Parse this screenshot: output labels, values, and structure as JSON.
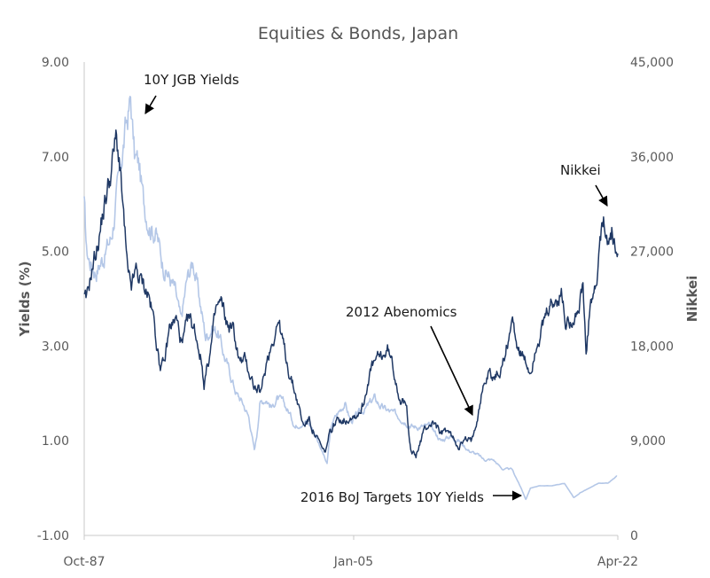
{
  "chart_data": {
    "type": "line",
    "title": "Equities & Bonds, Japan",
    "x_tick_labels": [
      "Oct-87",
      "Jan-05",
      "Apr-22"
    ],
    "x_range": [
      1987.75,
      2022.25
    ],
    "y_left": {
      "label": "Yields (%)",
      "range": [
        -1,
        9
      ],
      "tick_values": [
        -1,
        1,
        3,
        5,
        7,
        9
      ],
      "tick_labels": [
        "-1.00",
        "1.00",
        "3.00",
        "5.00",
        "7.00",
        "9.00"
      ]
    },
    "y_right": {
      "label": "Nikkei",
      "range": [
        0,
        45000
      ],
      "tick_values": [
        0,
        9000,
        18000,
        27000,
        36000,
        45000
      ],
      "tick_labels": [
        "0",
        "9,000",
        "18,000",
        "27,000",
        "36,000",
        "45,000"
      ]
    },
    "grid": false,
    "series": [
      {
        "name": "10Y JGB Yields",
        "axis": "left",
        "color": "#b4c7e7",
        "x": [
          1987.75,
          1987.9,
          1988.1,
          1988.5,
          1989.0,
          1989.5,
          1990.0,
          1990.4,
          1990.75,
          1991.0,
          1991.3,
          1991.6,
          1992.0,
          1992.4,
          1992.8,
          1993.2,
          1993.6,
          1994.0,
          1994.4,
          1994.8,
          1995.2,
          1995.6,
          1996.0,
          1996.4,
          1996.8,
          1997.2,
          1997.6,
          1998.0,
          1998.4,
          1998.75,
          1998.9,
          1999.1,
          1999.5,
          1999.9,
          2000.2,
          2000.6,
          2001.0,
          2001.4,
          2001.8,
          2002.2,
          2002.6,
          2003.0,
          2003.45,
          2003.6,
          2003.8,
          2004.2,
          2004.6,
          2005.0,
          2005.6,
          2006.0,
          2006.5,
          2007.0,
          2007.6,
          2008.2,
          2008.6,
          2009.0,
          2009.6,
          2010.2,
          2010.8,
          2011.4,
          2012.0,
          2012.6,
          2013.2,
          2013.6,
          2014.2,
          2014.8,
          2015.4,
          2016.0,
          2016.3,
          2016.6,
          2017.2,
          2018.0,
          2018.8,
          2019.4,
          2019.8,
          2020.4,
          2021.0,
          2021.6,
          2022.2
        ],
        "values": [
          6.0,
          5.0,
          4.8,
          4.6,
          4.9,
          5.3,
          6.5,
          7.5,
          8.2,
          7.0,
          6.8,
          6.0,
          5.6,
          5.4,
          4.8,
          4.5,
          4.2,
          3.5,
          4.4,
          4.8,
          4.0,
          3.2,
          3.4,
          3.3,
          2.8,
          2.4,
          2.0,
          1.8,
          1.5,
          0.8,
          1.1,
          1.8,
          1.9,
          1.7,
          1.9,
          1.8,
          1.6,
          1.3,
          1.4,
          1.4,
          1.2,
          0.9,
          0.5,
          1.0,
          1.4,
          1.6,
          1.8,
          1.4,
          1.6,
          1.7,
          1.9,
          1.7,
          1.6,
          1.5,
          1.4,
          1.3,
          1.3,
          1.3,
          1.0,
          1.1,
          1.0,
          0.8,
          0.7,
          0.6,
          0.6,
          0.4,
          0.4,
          0.0,
          -0.25,
          0.0,
          0.05,
          0.05,
          0.1,
          -0.2,
          -0.1,
          0.0,
          0.1,
          0.1,
          0.25
        ]
      },
      {
        "name": "Nikkei",
        "axis": "right",
        "color": "#1f3864",
        "x": [
          1987.75,
          1987.9,
          1988.2,
          1988.6,
          1989.0,
          1989.4,
          1989.8,
          1990.0,
          1990.3,
          1990.6,
          1990.8,
          1991.1,
          1991.5,
          1991.9,
          1992.3,
          1992.6,
          1992.9,
          1993.3,
          1993.7,
          1994.1,
          1994.5,
          1994.9,
          1995.3,
          1995.5,
          1995.9,
          1996.3,
          1996.6,
          1997.0,
          1997.4,
          1997.8,
          1998.2,
          1998.8,
          1999.2,
          1999.6,
          2000.0,
          2000.3,
          2000.7,
          2001.1,
          2001.5,
          2001.9,
          2002.3,
          2002.7,
          2003.0,
          2003.3,
          2003.6,
          2003.9,
          2004.3,
          2004.7,
          2005.0,
          2005.4,
          2005.8,
          2006.2,
          2006.6,
          2007.0,
          2007.4,
          2007.8,
          2008.2,
          2008.6,
          2008.9,
          2009.2,
          2009.6,
          2010.0,
          2010.4,
          2010.8,
          2011.2,
          2011.6,
          2012.0,
          2012.4,
          2012.8,
          2013.1,
          2013.5,
          2013.9,
          2014.3,
          2014.7,
          2015.0,
          2015.4,
          2015.8,
          2016.2,
          2016.6,
          2017.0,
          2017.4,
          2017.8,
          2018.2,
          2018.6,
          2018.9,
          2019.3,
          2019.7,
          2020.0,
          2020.2,
          2020.5,
          2020.9,
          2021.1,
          2021.4,
          2021.7,
          2021.9,
          2022.1,
          2022.25
        ],
        "values": [
          22500,
          22000,
          25000,
          27500,
          31000,
          34000,
          37500,
          36000,
          30000,
          24000,
          23500,
          25000,
          24000,
          23000,
          20000,
          16500,
          16000,
          20000,
          20500,
          18000,
          20500,
          19500,
          17000,
          14500,
          17500,
          21500,
          22000,
          20000,
          19500,
          16500,
          16500,
          14000,
          13500,
          17000,
          19000,
          20500,
          17500,
          15000,
          13000,
          10500,
          11000,
          9500,
          8600,
          7700,
          9500,
          10500,
          11200,
          11000,
          11500,
          11500,
          12500,
          15500,
          16500,
          17000,
          17600,
          15500,
          13000,
          12000,
          8000,
          7500,
          9500,
          10500,
          10800,
          9500,
          10000,
          9200,
          8600,
          9000,
          8900,
          11000,
          14000,
          15500,
          15000,
          15800,
          17500,
          20500,
          18000,
          16500,
          15500,
          18500,
          19500,
          21500,
          22000,
          23000,
          20000,
          21000,
          21500,
          23500,
          17000,
          22000,
          23500,
          28000,
          29500,
          28000,
          29000,
          26500,
          26800
        ]
      }
    ],
    "annotations": [
      {
        "text": "10Y JGB Yields",
        "x": 1990.8,
        "y_left": 8.2,
        "axis": "left"
      },
      {
        "text": "Nikkei",
        "x": 2021.1,
        "y_right": 29500,
        "axis": "right"
      },
      {
        "text": "2012 Abenomics",
        "x": 2012.9,
        "y_right": 10800,
        "axis": "right"
      },
      {
        "text": "2016 BoJ Targets 10Y Yields",
        "x": 2016.3,
        "y_left": -0.2,
        "axis": "left"
      }
    ]
  }
}
